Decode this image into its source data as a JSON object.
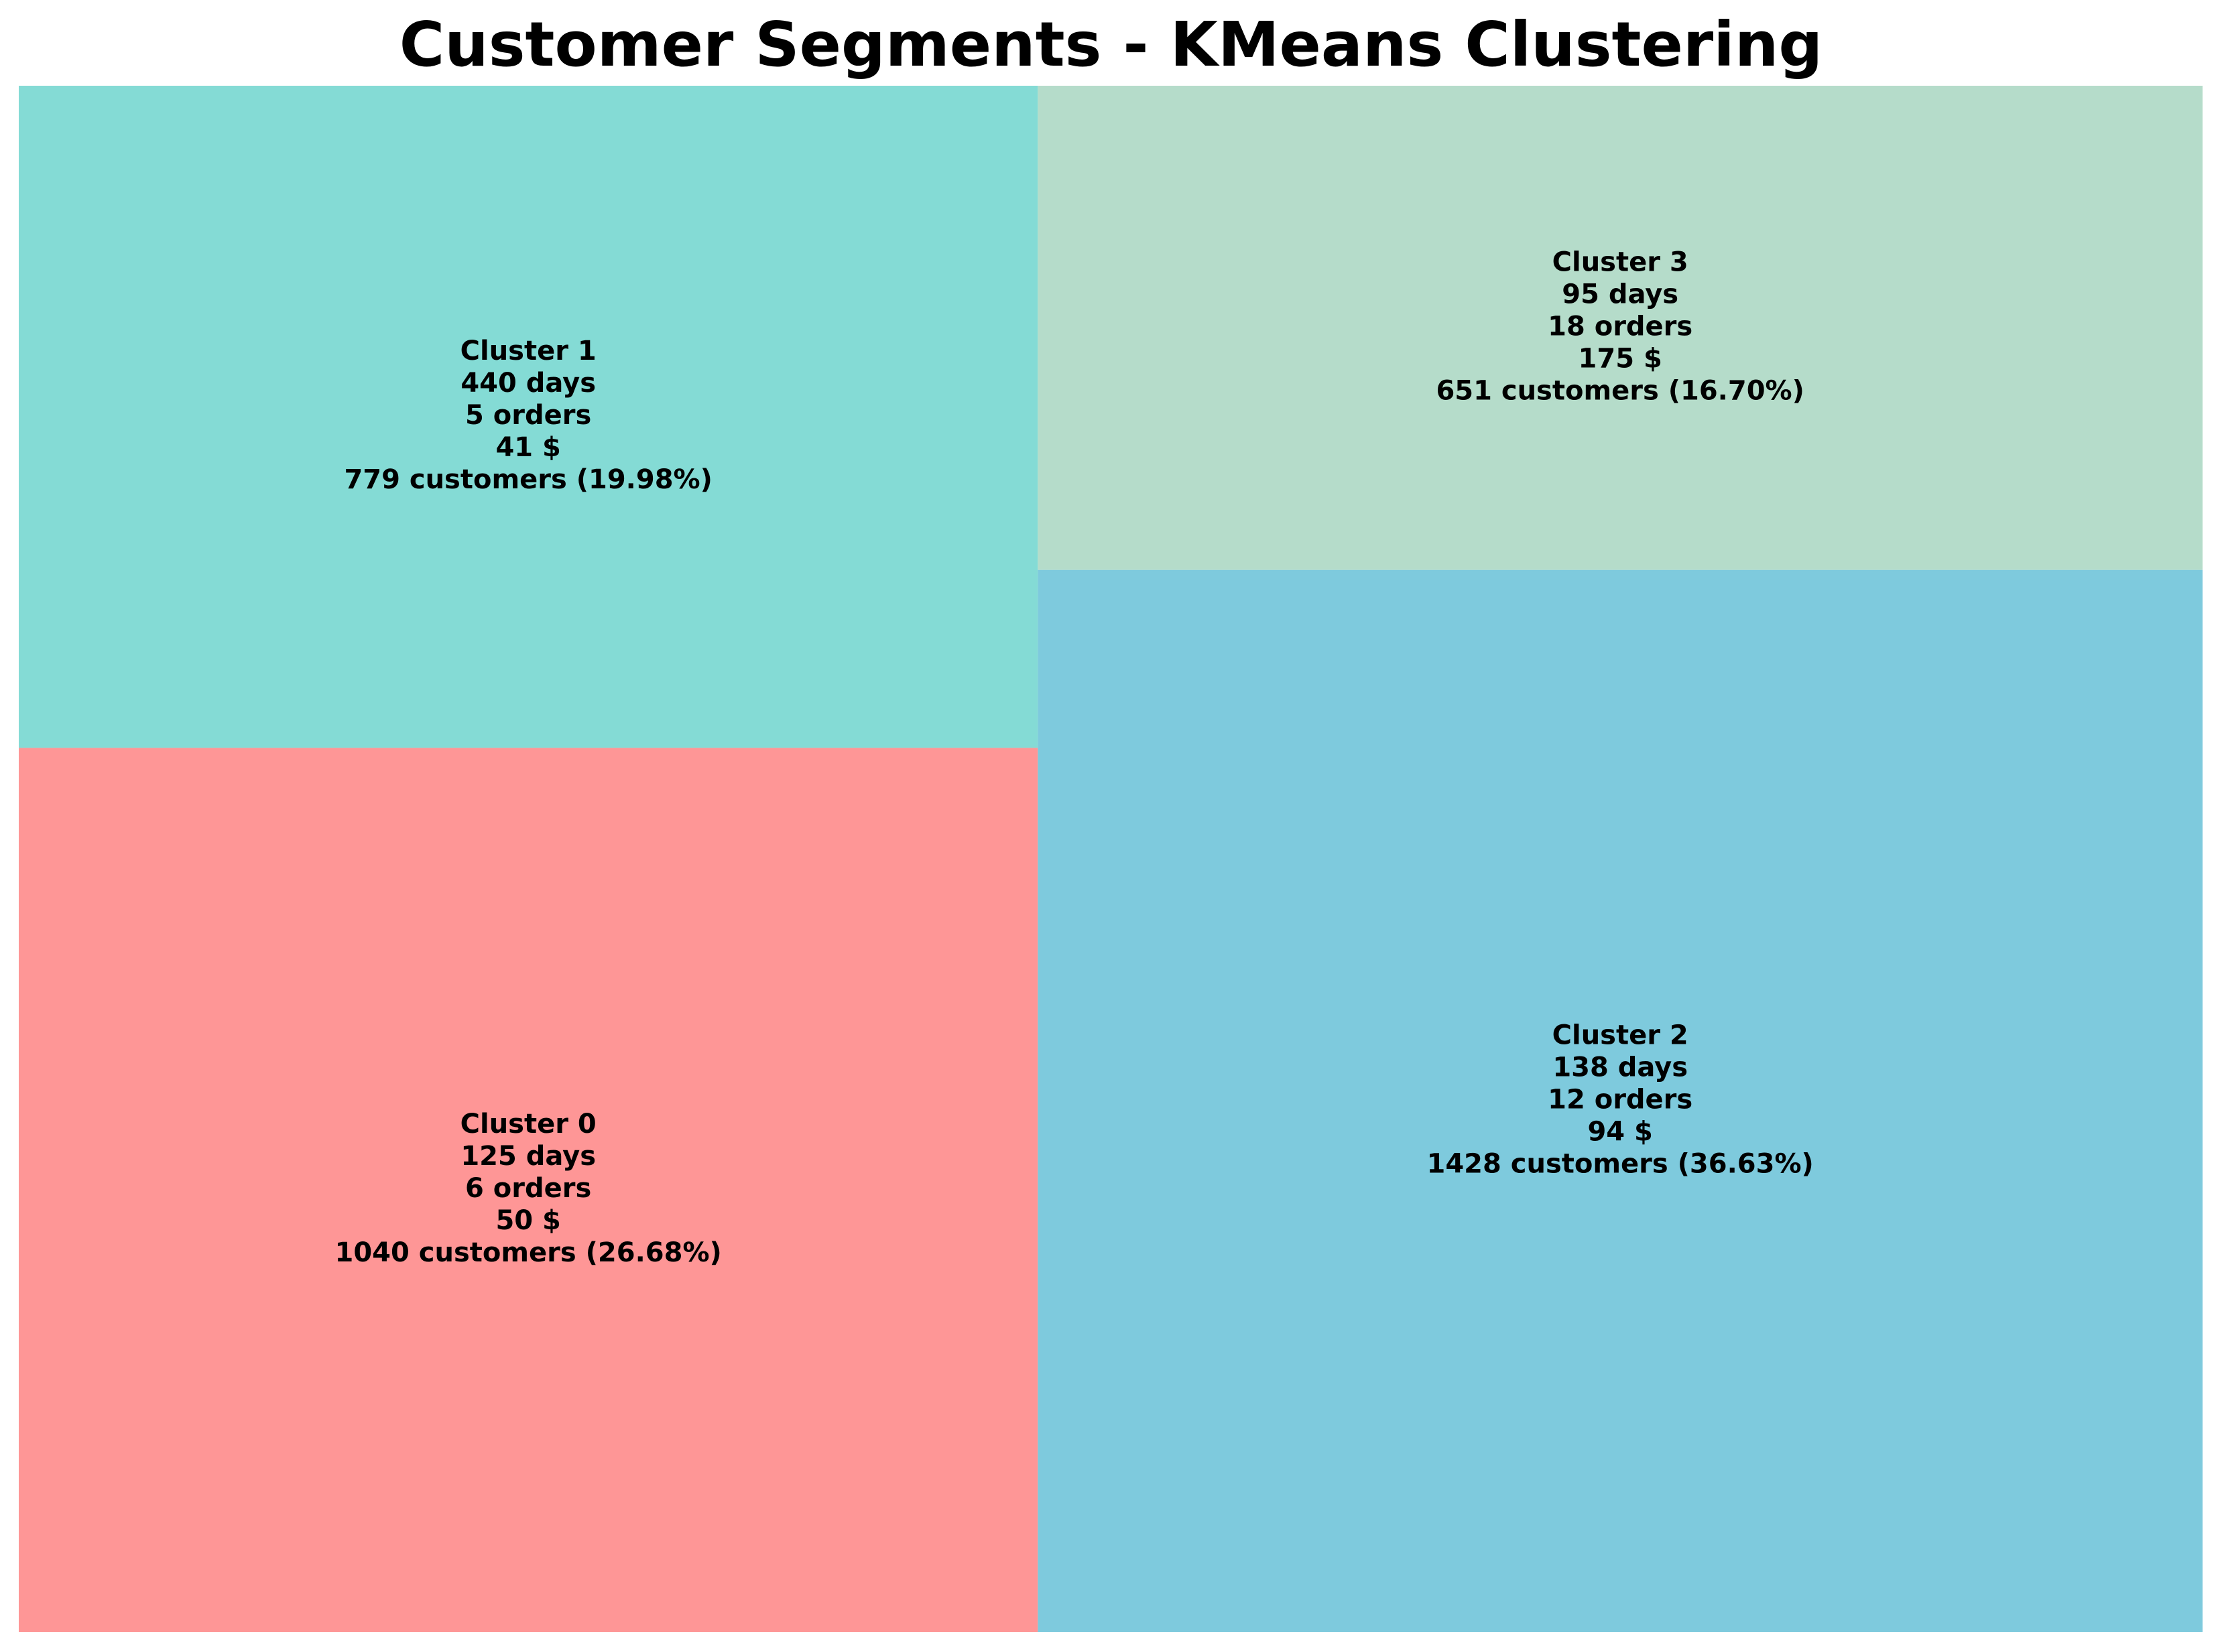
{
  "chart_data": {
    "type": "treemap",
    "title": "Customer Segments - KMeans Clustering",
    "clusters": [
      {
        "label": "Cluster 0",
        "days": "125 days",
        "orders": "6 orders",
        "value": "50 $",
        "customers": "1040 customers (26.68%)",
        "count": 1040,
        "share": 26.68,
        "color": "#fe9696"
      },
      {
        "label": "Cluster 1",
        "days": "440 days",
        "orders": "5 orders",
        "value": "41 $",
        "customers": "779 customers (19.98%)",
        "count": 779,
        "share": 19.98,
        "color": "#84dbd5"
      },
      {
        "label": "Cluster 2",
        "days": "138 days",
        "orders": "12 orders",
        "value": "94 $",
        "customers": "1428 customers (36.63%)",
        "count": 1428,
        "share": 36.63,
        "color": "#7ecadd"
      },
      {
        "label": "Cluster 3",
        "days": "95 days",
        "orders": "18 orders",
        "value": "175 $",
        "customers": "651 customers (16.70%)",
        "count": 651,
        "share": 16.7,
        "color": "#b5dcca"
      }
    ]
  }
}
